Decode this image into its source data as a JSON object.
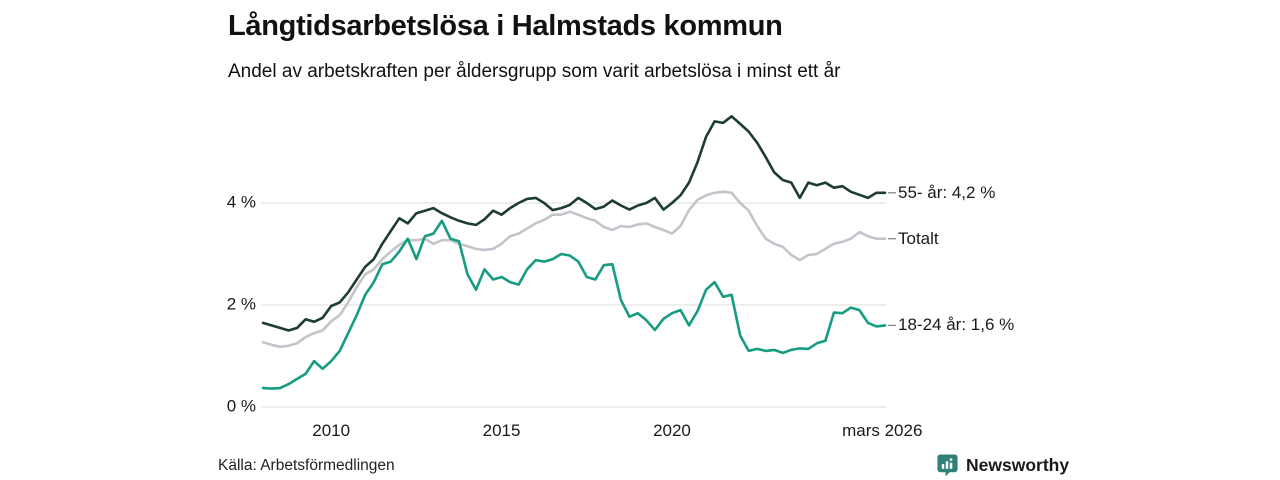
{
  "header": {
    "title": "Långtidsarbetslösa i Halmstads kommun",
    "subtitle": "Andel av arbetskraften per åldersgrupp som varit arbetslösa i minst ett år"
  },
  "footer": {
    "source": "Källa: Arbetsförmedlingen",
    "brand": "Newsworthy",
    "brand_color": "#2f8076",
    "logo_icon": "bar-chart-speech-bubble-icon"
  },
  "chart_data": {
    "type": "line",
    "title": "Långtidsarbetslösa i Halmstads kommun",
    "subtitle": "Andel av arbetskraften per åldersgrupp som varit arbetslösa i minst ett år",
    "grid": "horizontal",
    "legend_position": "right-end-labels",
    "leader_dash_color": "#888888",
    "gridline_color": "#e3e3e3",
    "x_axis": {
      "range": [
        2008,
        2026.25
      ],
      "ticks": [
        {
          "value": 2010,
          "label": "2010"
        },
        {
          "value": 2015,
          "label": "2015"
        },
        {
          "value": 2020,
          "label": "2020"
        },
        {
          "value": 2026.17,
          "label": "mars 2026"
        }
      ]
    },
    "y_axis": {
      "unit": "%",
      "range": [
        0,
        6.2
      ],
      "ticks": [
        {
          "value": 0,
          "label": "0 %"
        },
        {
          "value": 2,
          "label": "2 %"
        },
        {
          "value": 4,
          "label": "4 %"
        }
      ]
    },
    "x": [
      2008,
      2008.25,
      2008.5,
      2008.75,
      2009,
      2009.25,
      2009.5,
      2009.75,
      2010,
      2010.25,
      2010.5,
      2010.75,
      2011,
      2011.25,
      2011.5,
      2011.75,
      2012,
      2012.25,
      2012.5,
      2012.75,
      2013,
      2013.25,
      2013.5,
      2013.75,
      2014,
      2014.25,
      2014.5,
      2014.75,
      2015,
      2015.25,
      2015.5,
      2015.75,
      2016,
      2016.25,
      2016.5,
      2016.75,
      2017,
      2017.25,
      2017.5,
      2017.75,
      2018,
      2018.25,
      2018.5,
      2018.75,
      2019,
      2019.25,
      2019.5,
      2019.75,
      2020,
      2020.25,
      2020.5,
      2020.75,
      2021,
      2021.25,
      2021.5,
      2021.75,
      2022,
      2022.25,
      2022.5,
      2022.75,
      2023,
      2023.25,
      2023.5,
      2023.75,
      2024,
      2024.25,
      2024.5,
      2024.75,
      2025,
      2025.25,
      2025.5,
      2025.75,
      2026,
      2026.25
    ],
    "series": [
      {
        "name": "55- år",
        "end_label": "55- år: 4,2 %",
        "last_value_label": "4,2 %",
        "color": "#1d3c34",
        "values": [
          1.65,
          1.6,
          1.55,
          1.5,
          1.55,
          1.72,
          1.67,
          1.75,
          1.98,
          2.05,
          2.25,
          2.5,
          2.75,
          2.9,
          3.2,
          3.45,
          3.7,
          3.6,
          3.8,
          3.85,
          3.9,
          3.8,
          3.72,
          3.65,
          3.6,
          3.57,
          3.68,
          3.85,
          3.77,
          3.9,
          4.0,
          4.08,
          4.1,
          4.0,
          3.86,
          3.9,
          3.96,
          4.1,
          4.0,
          3.88,
          3.93,
          4.05,
          3.95,
          3.87,
          3.95,
          4.0,
          4.1,
          3.87,
          4.0,
          4.15,
          4.4,
          4.8,
          5.3,
          5.6,
          5.57,
          5.7,
          5.55,
          5.4,
          5.18,
          4.9,
          4.6,
          4.45,
          4.4,
          4.1,
          4.4,
          4.35,
          4.4,
          4.3,
          4.33,
          4.22,
          4.16,
          4.1,
          4.2,
          4.2
        ]
      },
      {
        "name": "Totalt",
        "end_label": "Totalt",
        "last_value_label": "",
        "color": "#c5c3cb",
        "values": [
          1.27,
          1.22,
          1.18,
          1.2,
          1.25,
          1.37,
          1.45,
          1.5,
          1.68,
          1.8,
          2.05,
          2.35,
          2.6,
          2.7,
          2.9,
          3.05,
          3.18,
          3.27,
          3.27,
          3.3,
          3.2,
          3.27,
          3.27,
          3.2,
          3.15,
          3.1,
          3.08,
          3.1,
          3.2,
          3.35,
          3.4,
          3.5,
          3.6,
          3.67,
          3.77,
          3.77,
          3.83,
          3.77,
          3.7,
          3.65,
          3.53,
          3.47,
          3.55,
          3.53,
          3.58,
          3.6,
          3.53,
          3.47,
          3.4,
          3.55,
          3.86,
          4.06,
          4.15,
          4.2,
          4.22,
          4.2,
          4.0,
          3.85,
          3.55,
          3.3,
          3.2,
          3.14,
          2.98,
          2.88,
          2.98,
          3.0,
          3.1,
          3.2,
          3.24,
          3.3,
          3.43,
          3.35,
          3.3,
          3.3
        ]
      },
      {
        "name": "18-24 år",
        "end_label": "18-24 år: 1,6 %",
        "last_value_label": "1,6 %",
        "color": "#169c82",
        "values": [
          0.37,
          0.36,
          0.37,
          0.45,
          0.55,
          0.65,
          0.9,
          0.75,
          0.9,
          1.1,
          1.45,
          1.8,
          2.2,
          2.45,
          2.8,
          2.85,
          3.05,
          3.3,
          2.9,
          3.35,
          3.4,
          3.65,
          3.3,
          3.25,
          2.6,
          2.3,
          2.7,
          2.5,
          2.55,
          2.45,
          2.4,
          2.7,
          2.88,
          2.85,
          2.9,
          3.0,
          2.97,
          2.85,
          2.55,
          2.5,
          2.78,
          2.8,
          2.1,
          1.77,
          1.84,
          1.7,
          1.51,
          1.73,
          1.84,
          1.9,
          1.6,
          1.88,
          2.3,
          2.45,
          2.16,
          2.2,
          1.4,
          1.1,
          1.14,
          1.1,
          1.12,
          1.06,
          1.12,
          1.15,
          1.14,
          1.25,
          1.3,
          1.85,
          1.84,
          1.95,
          1.9,
          1.65,
          1.58,
          1.6
        ]
      }
    ]
  }
}
